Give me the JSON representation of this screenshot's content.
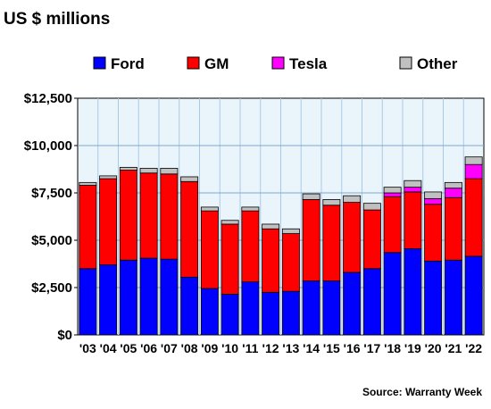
{
  "chart_data": {
    "type": "bar",
    "stacked": true,
    "title": "US $ millions",
    "source": "Source: Warranty Week",
    "categories": [
      "'03",
      "'04",
      "'05",
      "'06",
      "'07",
      "'08",
      "'09",
      "'10",
      "'11",
      "'12",
      "'13",
      "'14",
      "'15",
      "'16",
      "'17",
      "'18",
      "'19",
      "'20",
      "'21",
      "'22"
    ],
    "series": [
      {
        "name": "Ford",
        "color": "#0000ff",
        "values": [
          3500,
          3700,
          3950,
          4050,
          4000,
          3050,
          2450,
          2150,
          2800,
          2250,
          2300,
          2850,
          2850,
          3300,
          3500,
          4350,
          4550,
          3900,
          3950,
          4150
        ]
      },
      {
        "name": "GM",
        "color": "#ff0000",
        "values": [
          4400,
          4550,
          4750,
          4500,
          4500,
          5050,
          4100,
          3700,
          3750,
          3350,
          3050,
          4300,
          4000,
          3700,
          3100,
          2950,
          3000,
          3000,
          3300,
          4100
        ]
      },
      {
        "name": "Tesla",
        "color": "#ff00ff",
        "values": [
          0,
          0,
          0,
          0,
          0,
          0,
          0,
          0,
          0,
          0,
          0,
          0,
          0,
          0,
          0,
          200,
          250,
          300,
          500,
          750
        ]
      },
      {
        "name": "Other",
        "color": "#c0c0c0",
        "values": [
          150,
          150,
          150,
          250,
          300,
          250,
          200,
          200,
          200,
          250,
          250,
          300,
          300,
          350,
          350,
          300,
          350,
          350,
          300,
          400
        ]
      }
    ],
    "ylim": [
      0,
      12500
    ],
    "yticks": [
      0,
      2500,
      5000,
      7500,
      10000,
      12500
    ],
    "ytick_labels": [
      "$0",
      "$2,500",
      "$5,000",
      "$7,500",
      "$10,000",
      "$12,500"
    ],
    "legend_position": "top",
    "grid": true
  }
}
